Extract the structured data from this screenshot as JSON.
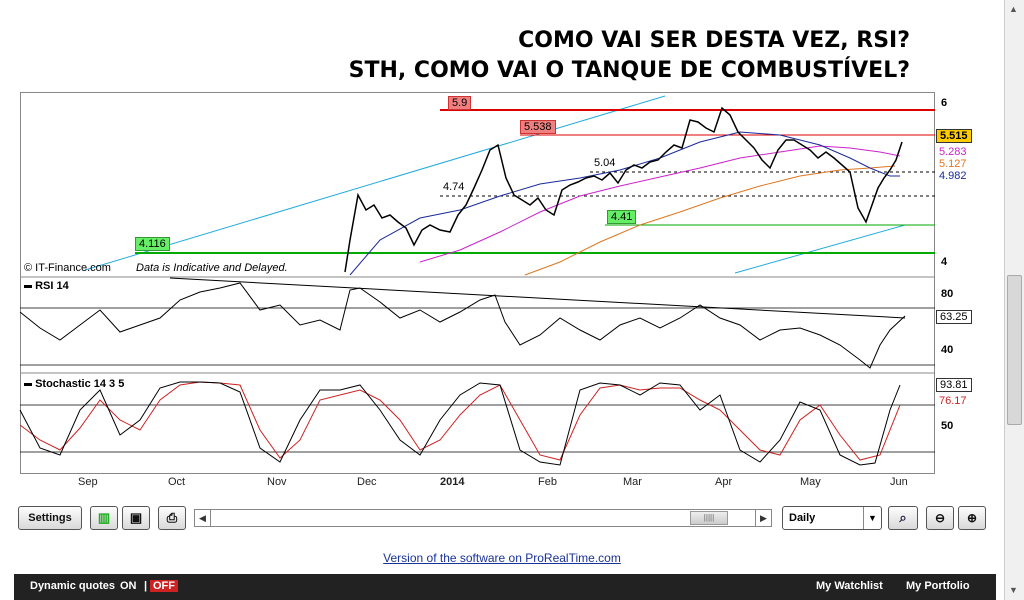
{
  "headline": {
    "line1": "COMO VAI SER DESTA VEZ, RSI?",
    "line2": "STH, COMO VAI O TANQUE DE COMBUSTÍVEL?"
  },
  "chart": {
    "copyright": "© IT-Finance.com",
    "disclaimer": "Data is Indicative and Delayed.",
    "level_labels": {
      "l59": "5.9",
      "l5538": "5.538",
      "l504": "5.04",
      "l474": "4.74",
      "l441": "4.41",
      "l4116": "4.116"
    },
    "price_axis": {
      "top": "6",
      "bottom": "4",
      "last": "5.515",
      "ma1": "5.283",
      "ma2": "5.127",
      "ma3": "4.982"
    },
    "rsi": {
      "title": "RSI 14",
      "tick_high": "80",
      "tick_low": "40",
      "value": "63.25"
    },
    "stoch": {
      "title": "Stochastic 14 3 5",
      "tick_mid": "50",
      "value_k": "93.81",
      "value_d": "76.17"
    },
    "months": [
      "Sep",
      "Oct",
      "Nov",
      "Dec",
      "2014",
      "Feb",
      "Mar",
      "Apr",
      "May",
      "Jun"
    ]
  },
  "colors": {
    "resistance": "#dd0000",
    "support": "#00aa00",
    "channel": "#22aadd",
    "ma_blue": "#1a2a9a",
    "ma_magenta": "#cc22cc",
    "ma_orange": "#dd7722",
    "stoch_signal": "#cc2222"
  },
  "toolbar": {
    "settings_label": "Settings",
    "period": "Daily"
  },
  "footer": {
    "version_link": "Version of the software on ProRealTime.com",
    "dynamic_quotes": "Dynamic quotes",
    "on": "ON",
    "separator": "|",
    "off": "OFF",
    "watchlist": "My Watchlist",
    "portfolio": "My Portfolio"
  }
}
